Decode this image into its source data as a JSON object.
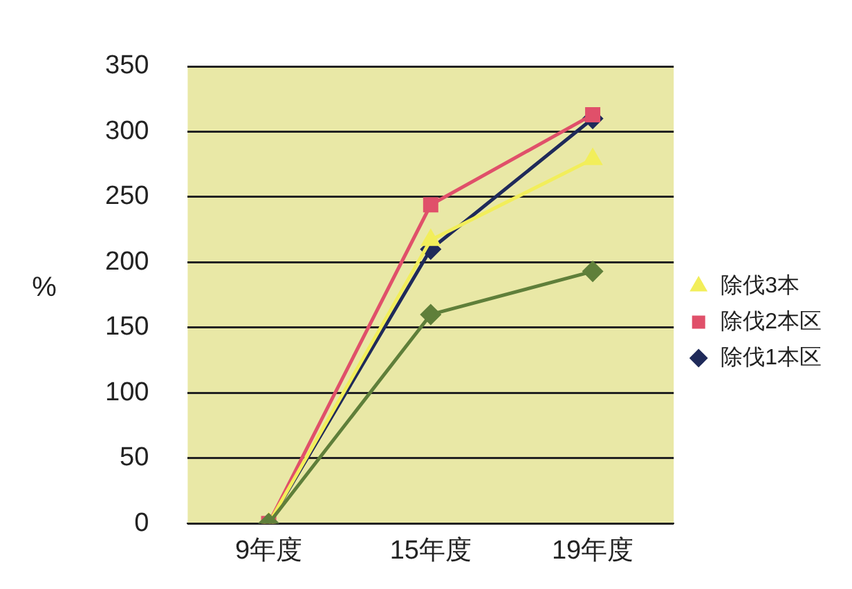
{
  "chart_data": {
    "type": "line",
    "ylabel": "%",
    "categories": [
      "9年度",
      "15年度",
      "19年度"
    ],
    "series": [
      {
        "name": "除伐1本区",
        "color": "#1f2a5a",
        "marker": "diamond",
        "values": [
          0,
          210,
          310
        ]
      },
      {
        "name": "除伐2本区",
        "color": "#e0506a",
        "marker": "square",
        "values": [
          0,
          244,
          313
        ]
      },
      {
        "name": "除伐3本",
        "color": "#f2ee5a",
        "marker": "triangle",
        "values": [
          0,
          217,
          279
        ]
      },
      {
        "color": "#5f7f3a",
        "marker": "diamond",
        "values": [
          0,
          160,
          193
        ]
      }
    ],
    "ylim": [
      0,
      350
    ],
    "yticks": [
      0,
      50,
      100,
      150,
      200,
      250,
      300,
      350
    ],
    "grid": "y",
    "legend": "right"
  }
}
